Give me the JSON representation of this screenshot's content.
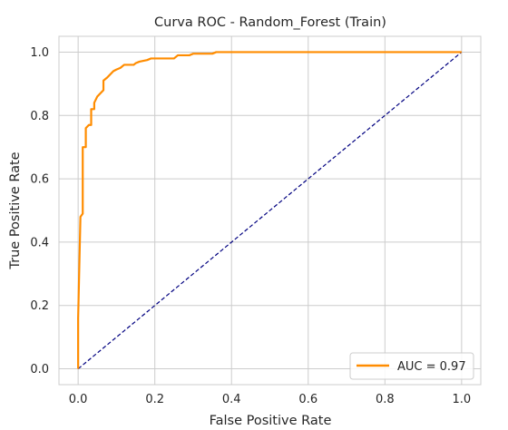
{
  "chart_data": {
    "type": "line",
    "title": "Curva ROC - Random_Forest (Train)",
    "xlabel": "False Positive Rate",
    "ylabel": "True Positive Rate",
    "xlim": [
      -0.05,
      1.05
    ],
    "ylim": [
      -0.05,
      1.05
    ],
    "xticks": [
      "0.0",
      "0.2",
      "0.4",
      "0.6",
      "0.8",
      "1.0"
    ],
    "yticks": [
      "0.0",
      "0.2",
      "0.4",
      "0.6",
      "0.8",
      "1.0"
    ],
    "grid": true,
    "legend_position": "lower-right",
    "series": [
      {
        "name": "AUC = 0.97",
        "color": "#ff8c00",
        "style": "solid",
        "points": [
          [
            0.0,
            0.0
          ],
          [
            0.0,
            0.16
          ],
          [
            0.006,
            0.48
          ],
          [
            0.012,
            0.49
          ],
          [
            0.012,
            0.7
          ],
          [
            0.02,
            0.7
          ],
          [
            0.02,
            0.76
          ],
          [
            0.028,
            0.77
          ],
          [
            0.034,
            0.77
          ],
          [
            0.034,
            0.82
          ],
          [
            0.042,
            0.82
          ],
          [
            0.042,
            0.84
          ],
          [
            0.05,
            0.86
          ],
          [
            0.058,
            0.87
          ],
          [
            0.066,
            0.88
          ],
          [
            0.066,
            0.91
          ],
          [
            0.076,
            0.92
          ],
          [
            0.084,
            0.93
          ],
          [
            0.092,
            0.94
          ],
          [
            0.1,
            0.945
          ],
          [
            0.11,
            0.95
          ],
          [
            0.12,
            0.96
          ],
          [
            0.145,
            0.96
          ],
          [
            0.15,
            0.965
          ],
          [
            0.16,
            0.97
          ],
          [
            0.18,
            0.975
          ],
          [
            0.19,
            0.98
          ],
          [
            0.25,
            0.98
          ],
          [
            0.26,
            0.99
          ],
          [
            0.29,
            0.99
          ],
          [
            0.3,
            0.995
          ],
          [
            0.35,
            0.995
          ],
          [
            0.36,
            1.0
          ],
          [
            1.0,
            1.0
          ]
        ]
      },
      {
        "name": "",
        "color": "#000080",
        "style": "dashed",
        "points": [
          [
            0.0,
            0.0
          ],
          [
            1.0,
            1.0
          ]
        ]
      }
    ]
  }
}
